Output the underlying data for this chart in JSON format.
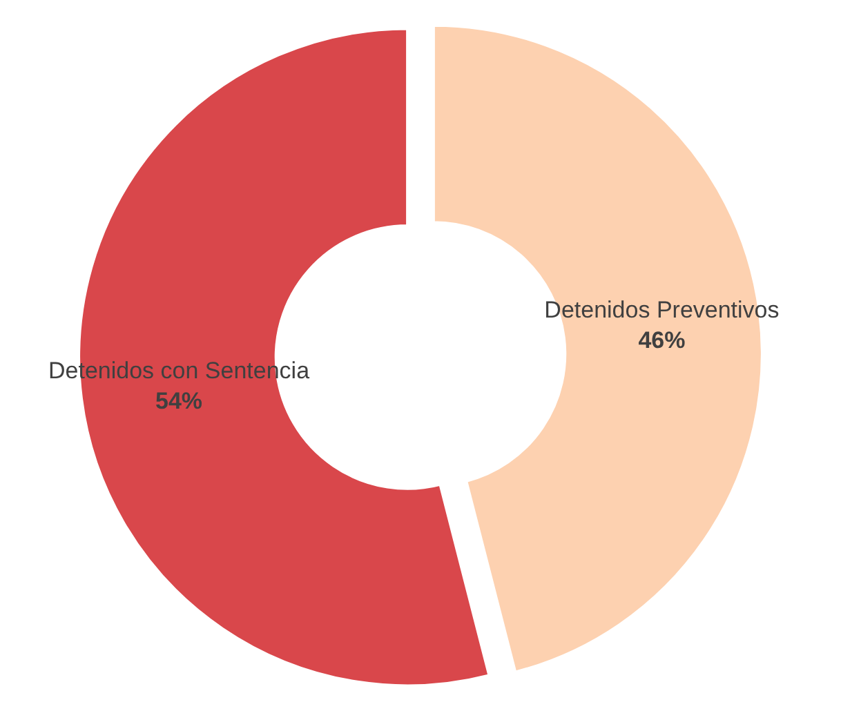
{
  "chart_data": {
    "type": "donut",
    "categories": [
      "Detenidos Preventivos",
      "Detenidos con Sentencia"
    ],
    "values": [
      46,
      54
    ],
    "colors": [
      "#fdd1b0",
      "#d9474b"
    ],
    "value_labels": [
      "46%",
      "54%"
    ],
    "legend": false
  }
}
